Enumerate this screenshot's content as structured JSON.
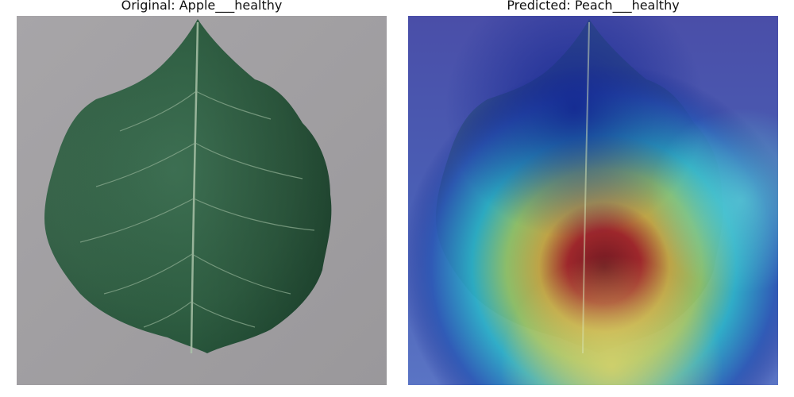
{
  "panels": {
    "original": {
      "title": "Original: Apple___healthy",
      "background_color": "#9f9da0",
      "leaf_color": "#2f5e42",
      "vein_color": "#a9c2a8"
    },
    "predicted": {
      "title": "Predicted: Peach___healthy",
      "overlay": "heatmap",
      "heatmap_colors": [
        "#3b3fae",
        "#1e3aa5",
        "#22b8c8",
        "#8ecf6a",
        "#d9c640",
        "#cf3a2a",
        "#7a0e0e"
      ]
    }
  }
}
